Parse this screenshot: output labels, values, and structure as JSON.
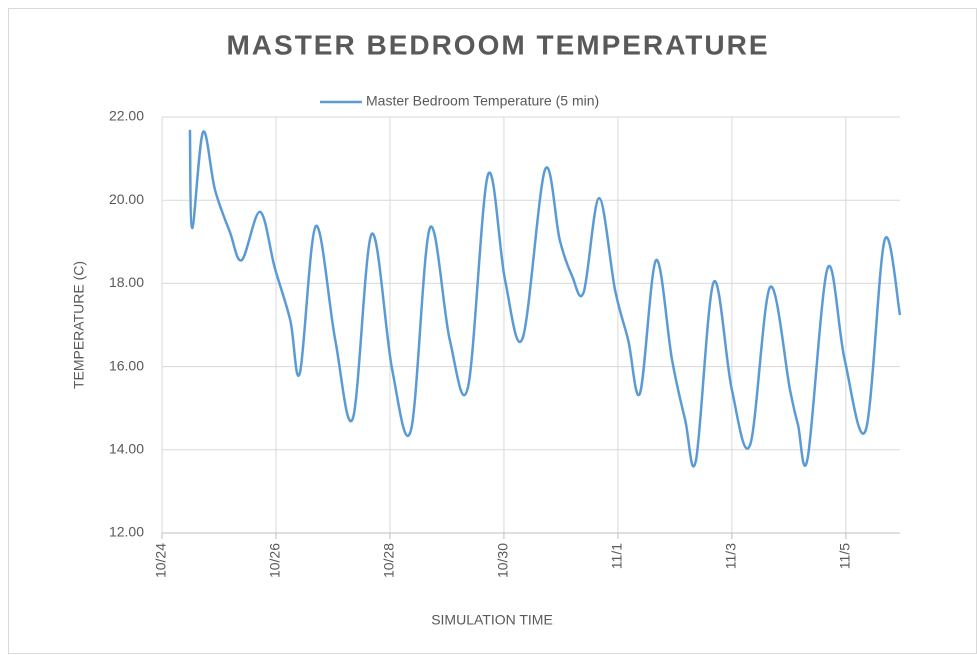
{
  "chart_data": {
    "type": "line",
    "title": "MASTER BEDROOM TEMPERATURE",
    "x_label": "SIMULATION TIME",
    "y_label": "TEMPERATURE (C)",
    "legend": "top",
    "grid": true,
    "xlim": [
      0,
      12.95
    ],
    "ylim": [
      12,
      22
    ],
    "xticks": [
      {
        "value": 0,
        "label": "10/24"
      },
      {
        "value": 2,
        "label": "10/26"
      },
      {
        "value": 4,
        "label": "10/28"
      },
      {
        "value": 6,
        "label": "10/30"
      },
      {
        "value": 8,
        "label": "11/1"
      },
      {
        "value": 10,
        "label": "11/3"
      },
      {
        "value": 12,
        "label": "11/5"
      }
    ],
    "yticks": [
      {
        "value": 12,
        "label": "12.00"
      },
      {
        "value": 14,
        "label": "14.00"
      },
      {
        "value": 16,
        "label": "16.00"
      },
      {
        "value": 18,
        "label": "18.00"
      },
      {
        "value": 20,
        "label": "20.00"
      },
      {
        "value": 22,
        "label": "22.00"
      }
    ],
    "x": [
      0.49,
      0.53,
      0.72,
      0.93,
      1.19,
      1.4,
      1.72,
      1.98,
      2.25,
      2.42,
      2.7,
      3.04,
      3.35,
      3.68,
      4.04,
      4.37,
      4.7,
      5.05,
      5.37,
      5.72,
      6.02,
      6.33,
      6.72,
      6.98,
      7.19,
      7.4,
      7.67,
      7.95,
      8.18,
      8.39,
      8.67,
      8.95,
      9.18,
      9.37,
      9.68,
      10.0,
      10.32,
      10.67,
      11.02,
      11.16,
      11.33,
      11.68,
      11.98,
      12.35,
      12.68,
      12.95
    ],
    "series": [
      {
        "name": "Master Bedroom Temperature (5 min)",
        "color": "#5b9bd5",
        "values": [
          21.69,
          19.33,
          21.64,
          20.25,
          19.24,
          18.56,
          19.72,
          18.37,
          17.12,
          15.85,
          19.38,
          16.64,
          14.76,
          19.19,
          15.92,
          14.48,
          19.33,
          16.64,
          15.51,
          20.61,
          18.08,
          16.69,
          20.73,
          19.04,
          18.2,
          17.79,
          20.05,
          17.84,
          16.64,
          15.37,
          18.56,
          16.16,
          14.72,
          13.75,
          18.03,
          15.44,
          14.12,
          17.91,
          15.44,
          14.6,
          13.8,
          18.37,
          16.16,
          14.48,
          19.04,
          17.24
        ]
      }
    ]
  }
}
